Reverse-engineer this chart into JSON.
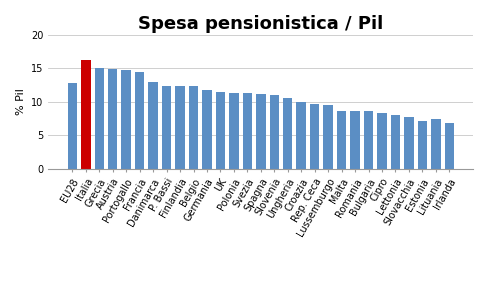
{
  "title": "Spesa pensionistica / Pil",
  "ylabel": "% Pil",
  "categories": [
    "EU28",
    "Italia",
    "Grecia",
    "Austria",
    "Portogallo",
    "Francia",
    "Danimarca",
    "P. Bassi",
    "Finlandia",
    "Belgio",
    "Germania",
    "UK",
    "Polonia",
    "Svezia",
    "Spagna",
    "Slovenia",
    "Ungheria",
    "Croazia",
    "Rep. Ceca",
    "Lussemburgo",
    "Malta",
    "Romania",
    "Bulgaria",
    "Cipro",
    "Lettonia",
    "Slovacchia",
    "Estonia",
    "Lituania",
    "Irlanda"
  ],
  "values": [
    12.8,
    16.2,
    15.0,
    14.9,
    14.8,
    14.4,
    13.0,
    12.3,
    12.3,
    12.3,
    11.7,
    11.4,
    11.3,
    11.3,
    11.2,
    11.0,
    10.6,
    10.0,
    9.7,
    9.5,
    8.7,
    8.6,
    8.6,
    8.4,
    8.0,
    7.8,
    7.2,
    7.5,
    6.9
  ],
  "bar_color_default": "#5b8ec4",
  "bar_color_italy": "#cc0000",
  "italy_index": 1,
  "ylim": [
    0,
    20
  ],
  "yticks": [
    0,
    5,
    10,
    15,
    20
  ],
  "background_color": "#ffffff",
  "title_fontsize": 13,
  "ylabel_fontsize": 8,
  "tick_fontsize": 7
}
